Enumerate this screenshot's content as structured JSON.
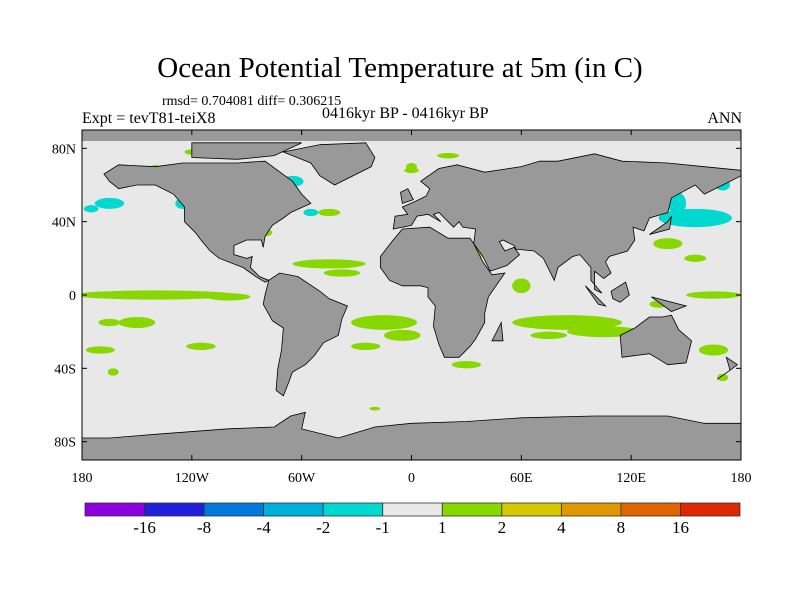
{
  "title": "Ocean Potential Temperature at 5m (in C)",
  "stats": "rmsd= 0.704081 diff= 0.306215",
  "experiment": "Expt = tevT81-teiX8",
  "period": "0416kyr BP - 0416kyr BP",
  "season": "ANN",
  "map": {
    "lon_range": [
      -180,
      180
    ],
    "lat_range": [
      -90,
      90
    ],
    "x_ticks": [
      "180",
      "120W",
      "60W",
      "0",
      "60E",
      "120E",
      "180"
    ],
    "x_tick_values": [
      -180,
      -120,
      -60,
      0,
      60,
      120,
      180
    ],
    "y_ticks": [
      "80N",
      "40N",
      "0",
      "40S",
      "80S"
    ],
    "y_tick_values": [
      80,
      40,
      0,
      -40,
      -80
    ],
    "land_color": "#999999",
    "ocean_color": "#e8e8e8"
  },
  "colorbar": {
    "colors": [
      "#8c00e0",
      "#2020dc",
      "#0078dc",
      "#00b0dc",
      "#00d8d0",
      "#e8e8e8",
      "#88d800",
      "#d4c800",
      "#e09800",
      "#e06400",
      "#e02800"
    ],
    "labels": [
      "-16",
      "-8",
      "-4",
      "-2",
      "-1",
      "1",
      "2",
      "4",
      "8",
      "16"
    ]
  }
}
